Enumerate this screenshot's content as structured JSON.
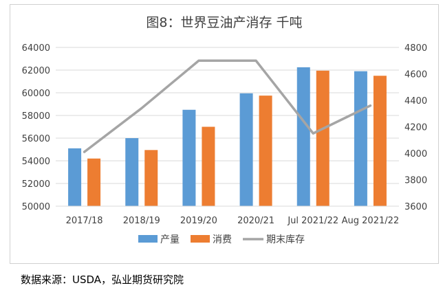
{
  "colors": {
    "production": "#5b9bd5",
    "consumption": "#ed7d31",
    "ending_stocks": "#a5a5a5",
    "grid": "#d9d9d9",
    "axis_text": "#404040",
    "title_text": "#404040"
  },
  "source_note": "数据来源：USDA，弘业期货研究院",
  "chart_data": {
    "type": "bar",
    "title": "图8：世界豆油产消存  千吨",
    "categories": [
      "2017/18",
      "2018/19",
      "2019/20",
      "2020/21",
      "Jul 2021/22",
      "Aug 2021/22"
    ],
    "series": [
      {
        "name": "产量",
        "type": "bar",
        "axis": "left",
        "values": [
          55100,
          56000,
          58500,
          59950,
          62250,
          61900
        ]
      },
      {
        "name": "消费",
        "type": "bar",
        "axis": "left",
        "values": [
          54200,
          54950,
          57000,
          59750,
          61950,
          61500
        ]
      },
      {
        "name": "期末库存",
        "type": "line",
        "axis": "right",
        "values": [
          4010,
          4340,
          4700,
          4700,
          4150,
          4360
        ]
      }
    ],
    "y_left": {
      "min": 50000,
      "max": 64000,
      "step": 2000,
      "tick_labels": [
        "50000",
        "52000",
        "54000",
        "56000",
        "58000",
        "60000",
        "62000",
        "64000"
      ]
    },
    "y_right": {
      "min": 3600,
      "max": 4800,
      "step": 200,
      "tick_labels": [
        "3600",
        "3800",
        "4000",
        "4200",
        "4400",
        "4600",
        "4800"
      ]
    },
    "grid": true,
    "legend_position": "bottom"
  }
}
